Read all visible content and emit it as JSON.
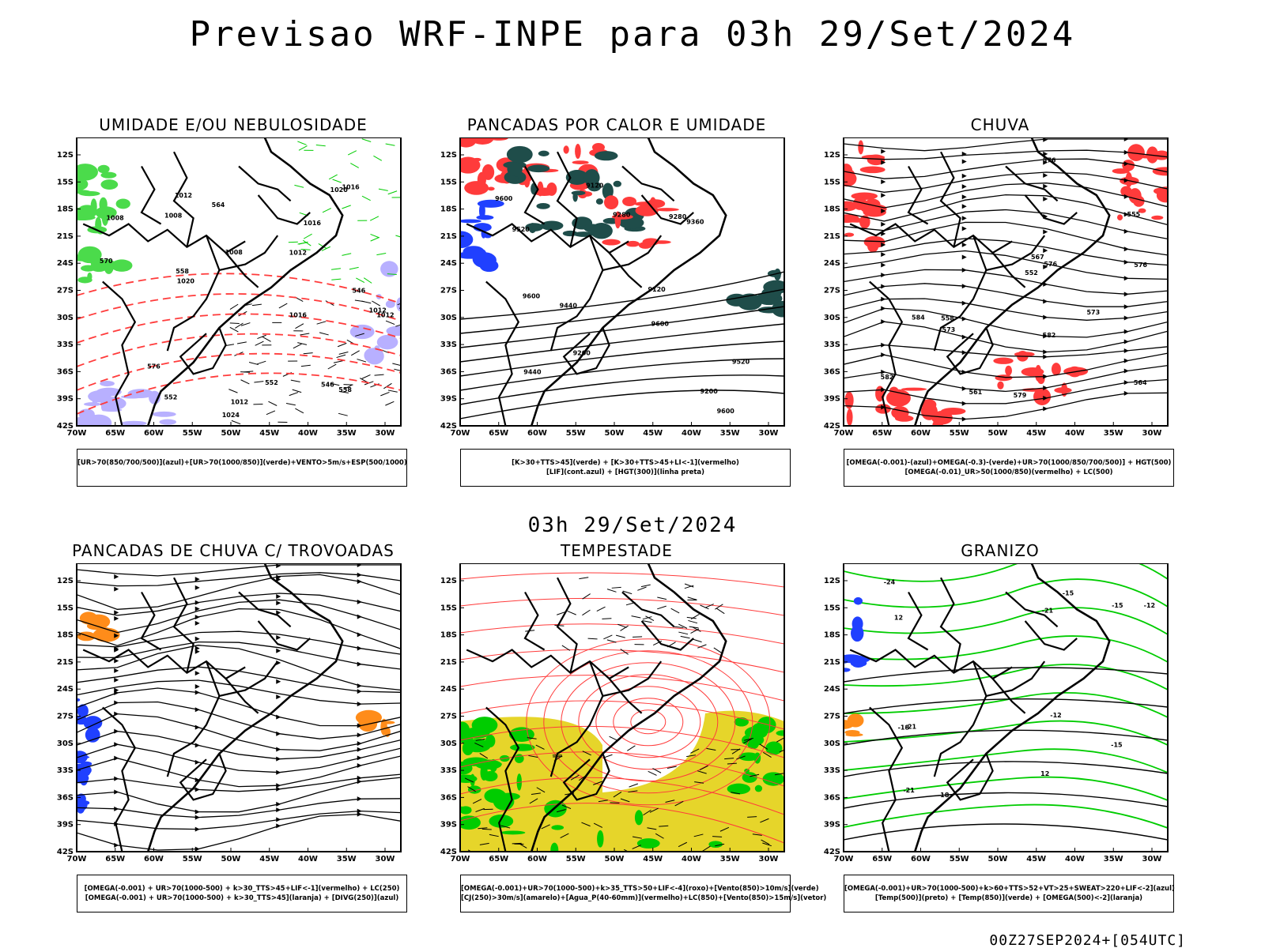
{
  "header": {
    "title": "Previsao WRF-INPE  para 03h 29/Set/2024"
  },
  "subheader": {
    "title": "03h 29/Set/2024"
  },
  "footer": {
    "run_label": "00Z27SEP2024+[054UTC]"
  },
  "axes": {
    "lat_labels": [
      "12S",
      "15S",
      "18S",
      "21S",
      "24S",
      "27S",
      "30S",
      "33S",
      "36S",
      "39S",
      "42S"
    ],
    "lon_labels": [
      "70W",
      "65W",
      "60W",
      "55W",
      "50W",
      "45W",
      "40W",
      "35W",
      "30W"
    ]
  },
  "panels": [
    {
      "title": "UMIDADE E/OU NEBULOSIDADE",
      "legend": [
        "[UR>70(850/700/500)](azul)+[UR>70(1000/850)](verde)+VENTO>5m/s+ESP(500/1000)"
      ],
      "contour_labels": [
        "1008",
        "1008",
        "1012",
        "1012",
        "1020",
        "1024",
        "1016",
        "1020",
        "1016",
        "1012",
        "1012",
        "1012",
        "1016",
        "576",
        "570",
        "552",
        "558",
        "564",
        "558",
        "552",
        "546",
        "546",
        "1008"
      ]
    },
    {
      "title": "PANCADAS POR CALOR E UMIDADE",
      "legend": [
        "[K>30+TTS>45](verde) + [K>30+TTS>45+LI<-1](vermelho)",
        "[LIF](cont.azul) + [HGT(300)](linha preta)"
      ],
      "contour_labels": [
        "9600",
        "9600",
        "9600",
        "9600",
        "9520",
        "9520",
        "9440",
        "9440",
        "9360",
        "9280",
        "9280",
        "9200",
        "9200",
        "9120",
        "9120"
      ]
    },
    {
      "title": "CHUVA",
      "legend": [
        "[OMEGA(-0.001)-(azul)+OMEGA(-0.3)-(verde)+UR>70(1000/850/700/500)] + HGT(500)",
        "[OMEGA(-0.01)_UR>50(1000/850)(vermelho) + LC(500)"
      ],
      "contour_labels": [
        "582",
        "582",
        "579",
        "576",
        "576",
        "573",
        "576",
        "573",
        "567",
        "564",
        "561",
        "558",
        "555",
        "552",
        "584"
      ]
    },
    {
      "title": "PANCADAS DE CHUVA C/ TROVOADAS",
      "legend": [
        "[OMEGA(-0.001) + UR>70(1000-500) + k>30_TTS>45+LIF<-1](vermelho) + LC(250)",
        "[OMEGA(-0.001) + UR>70(1000-500) + k>30_TTS>45](laranja) + [DIVG(250)](azul)"
      ],
      "contour_labels": []
    },
    {
      "title": "TEMPESTADE",
      "legend": [
        "[OMEGA(-0.001)+UR>70(1000-500)+k>35_TTS>50+LIF<-4](roxo)+[Vento(850)>10m/s](verde)",
        "[CJ(250)>30m/s](amarelo)+[Agua_P(40-60mm)](vermelho)+LC(850)+[Vento(850)>15m/s](vetor)"
      ],
      "contour_labels": []
    },
    {
      "title": "GRANIZO",
      "legend": [
        "[OMEGA(-0.001)+UR>70(1000-500)+k>60+TTS>52+VT>25+SWEAT>220+LIF<-2](azul)",
        "[Temp(500)](preto) + [Temp(850)](verde) + [OMEGA(500)<-2](laranja)"
      ],
      "contour_labels": [
        "-12",
        "12",
        "-15",
        "12",
        "-18",
        "-21",
        "-21",
        "-24",
        "-12",
        "-15",
        "-15",
        "-18",
        "-21"
      ]
    }
  ],
  "colors": {
    "red": "#ff3b3b",
    "green": "#00cc00",
    "blue": "#2040ff",
    "darkteal": "#1f4d4a",
    "yellow": "#e6d52a",
    "lavender": "#b8b0ff",
    "orange": "#ff8c1a"
  }
}
